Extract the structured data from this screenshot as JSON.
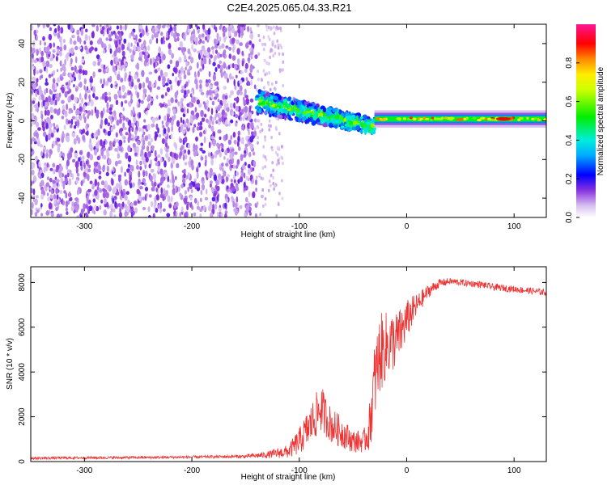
{
  "title": "C2E4.2025.065.04.33.R21",
  "colors": {
    "snr_line": "#ee3333",
    "frame": "#000000"
  },
  "chart_data": [
    {
      "type": "heatmap",
      "xlabel": "Height of straight line (km)",
      "ylabel": "Frequency (Hz)",
      "xlim": [
        -350,
        130
      ],
      "ylim": [
        -50,
        50
      ],
      "x_ticks": [
        "-300",
        "-200",
        "-100",
        "0",
        "100"
      ],
      "y_ticks": [
        "-40",
        "-20",
        "0",
        "20",
        "40"
      ],
      "colorbar": {
        "label": "Normalized spectral amplitude",
        "range": [
          0,
          1
        ],
        "ticks": [
          "0.0",
          "0.2",
          "0.4",
          "0.6",
          "0.8"
        ],
        "colors": [
          "#ffffff",
          "#bb88ee",
          "#7722dd",
          "#0000ff",
          "#00dddd",
          "#00ee00",
          "#ffff00",
          "#ff8800",
          "#ff0000",
          "#ff1493"
        ]
      },
      "regions": [
        {
          "x_from": -350,
          "x_to": -140,
          "freq_center": 0,
          "freq_width": 100,
          "amplitude": 0.15,
          "pattern": "broadband noise"
        },
        {
          "x_from": -140,
          "x_to": -30,
          "freq_center_start": 10,
          "freq_center_end": -3,
          "freq_width": 10,
          "amplitude": 0.45,
          "pattern": "scattered signal"
        },
        {
          "x_from": -30,
          "x_to": 130,
          "freq_center": 1,
          "freq_width": 4,
          "amplitude": 0.7,
          "pattern": "steady carrier"
        }
      ]
    },
    {
      "type": "line",
      "xlabel": "Height of straight line (km)",
      "ylabel": "SNR (10 * v/v)",
      "xlim": [
        -350,
        130
      ],
      "ylim": [
        0,
        8700
      ],
      "x_ticks": [
        "-300",
        "-200",
        "-100",
        "0",
        "100"
      ],
      "y_ticks": [
        "0",
        "2000",
        "4000",
        "6000",
        "8000"
      ],
      "series": [
        {
          "x": [
            -350,
            -300,
            -250,
            -200,
            -150,
            -130,
            -110,
            -100,
            -90,
            -80,
            -75,
            -70,
            -60,
            -50,
            -40,
            -35,
            -30,
            -25,
            -20,
            -15,
            -10,
            -5,
            0,
            5,
            10,
            20,
            30,
            40,
            50,
            60,
            70,
            80,
            90,
            100,
            110,
            120,
            130
          ],
          "y": [
            150,
            170,
            180,
            200,
            230,
            300,
            450,
            900,
            1600,
            2400,
            2000,
            1600,
            1300,
            900,
            900,
            1400,
            3500,
            4800,
            5100,
            5300,
            5400,
            5800,
            6300,
            6700,
            7000,
            7600,
            7950,
            8050,
            8000,
            7950,
            7900,
            7800,
            7750,
            7700,
            7650,
            7600,
            7550
          ],
          "noise": [
            60,
            60,
            60,
            60,
            80,
            150,
            300,
            600,
            900,
            1100,
            900,
            800,
            700,
            500,
            500,
            1000,
            1800,
            1800,
            1600,
            1400,
            1300,
            1100,
            900,
            700,
            500,
            300,
            200,
            150,
            150,
            150,
            150,
            150,
            150,
            150,
            150,
            150,
            150
          ]
        }
      ]
    }
  ]
}
